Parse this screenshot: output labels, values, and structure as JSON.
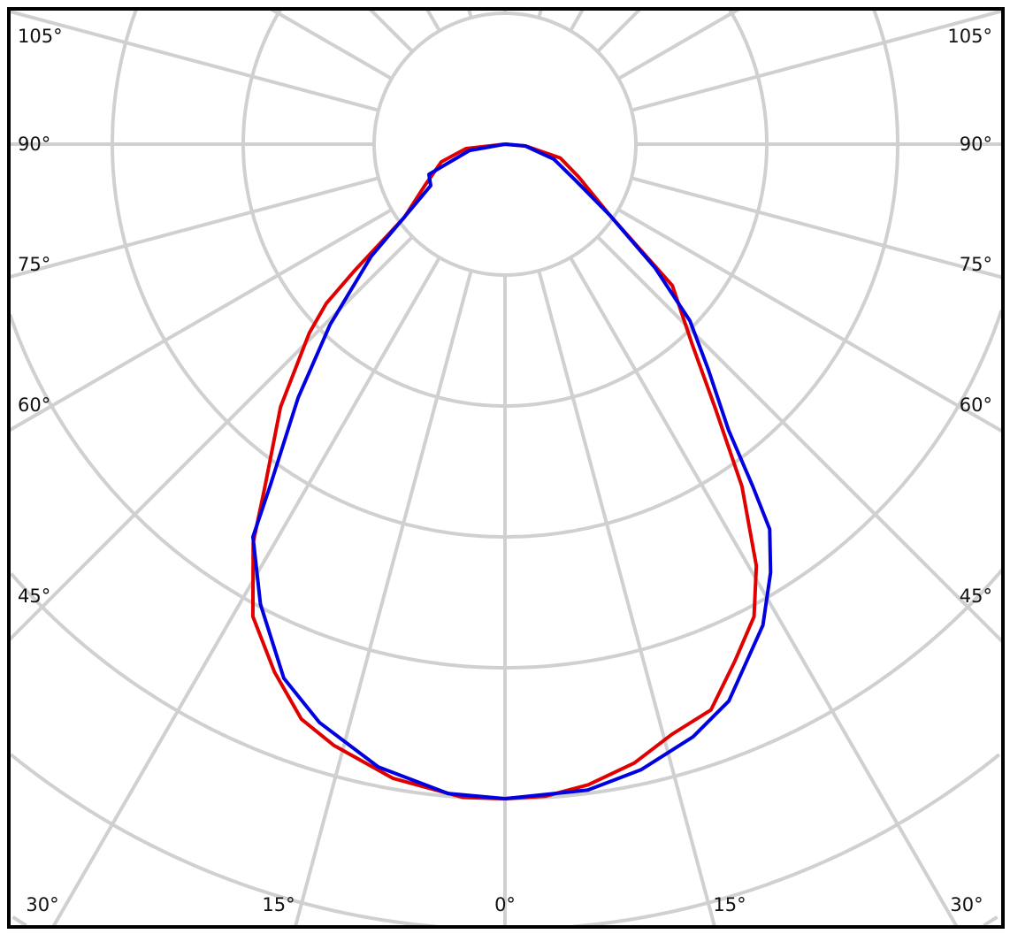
{
  "chart_data": {
    "type": "polar-line",
    "title": "",
    "angle_unit": "degrees",
    "angle_zero": "down",
    "radial_grid_rings": 7,
    "radial_ring_step": 0.2,
    "radial_tick_labels_shown": false,
    "angle_grid_step": 15,
    "grid": true,
    "grid_color": "#d0d0d0",
    "angle_labels": {
      "left": [
        "105°",
        "90°",
        "75°",
        "60°",
        "45°"
      ],
      "right": [
        "105°",
        "90°",
        "75°",
        "60°",
        "45°"
      ],
      "bottom": [
        "30°",
        "15°",
        "0°",
        "15°",
        "30°"
      ]
    },
    "series": [
      {
        "color": "#e00000",
        "points": [
          [
            -90,
            0.0
          ],
          [
            -83.5,
            0.06
          ],
          [
            -74.5,
            0.101
          ],
          [
            -62.7,
            0.138
          ],
          [
            -54,
            0.19
          ],
          [
            -49.9,
            0.302
          ],
          [
            -48.3,
            0.366
          ],
          [
            -46,
            0.416
          ],
          [
            -40.5,
            0.528
          ],
          [
            -35,
            0.64
          ],
          [
            -32.3,
            0.72
          ],
          [
            -28.1,
            0.818
          ],
          [
            -23.6,
            0.88
          ],
          [
            -19.5,
            0.932
          ],
          [
            -15.9,
            0.955
          ],
          [
            -10,
            0.984
          ],
          [
            -3.7,
            1.0
          ],
          [
            0,
            1.0
          ],
          [
            3.6,
            0.998
          ],
          [
            7.4,
            0.987
          ],
          [
            11.8,
            0.966
          ],
          [
            15.8,
            0.937
          ],
          [
            20,
            0.92
          ],
          [
            24,
            0.864
          ],
          [
            27.8,
            0.816
          ],
          [
            30.8,
            0.75
          ],
          [
            34.7,
            0.636
          ],
          [
            38.6,
            0.514
          ],
          [
            43,
            0.42
          ],
          [
            49.8,
            0.335
          ],
          [
            55.9,
            0.193
          ],
          [
            66,
            0.123
          ],
          [
            76,
            0.087
          ],
          [
            85,
            0.032
          ],
          [
            90,
            0.0
          ]
        ]
      },
      {
        "color": "#0000e0",
        "points": [
          [
            -90,
            0.0
          ],
          [
            -80,
            0.055
          ],
          [
            -68.4,
            0.125
          ],
          [
            -60.8,
            0.13
          ],
          [
            -53.9,
            0.192
          ],
          [
            -50,
            0.267
          ],
          [
            -44.1,
            0.384
          ],
          [
            -39.2,
            0.5
          ],
          [
            -34.6,
            0.63
          ],
          [
            -32.7,
            0.713
          ],
          [
            -28,
            0.796
          ],
          [
            -22.5,
            0.883
          ],
          [
            -17.8,
            0.928
          ],
          [
            -11.5,
            0.971
          ],
          [
            -5,
            0.996
          ],
          [
            0,
            1.0
          ],
          [
            7.3,
            0.995
          ],
          [
            12.3,
            0.978
          ],
          [
            17.6,
            0.95
          ],
          [
            21.9,
            0.917
          ],
          [
            28.2,
            0.834
          ],
          [
            31.8,
            0.77
          ],
          [
            34.5,
            0.714
          ],
          [
            35.9,
            0.646
          ],
          [
            38,
            0.555
          ],
          [
            42,
            0.465
          ],
          [
            46.3,
            0.391
          ],
          [
            50.5,
            0.297
          ],
          [
            55.9,
            0.193
          ],
          [
            63,
            0.12
          ],
          [
            73,
            0.078
          ],
          [
            85,
            0.031
          ],
          [
            90,
            0.0
          ]
        ]
      }
    ]
  }
}
